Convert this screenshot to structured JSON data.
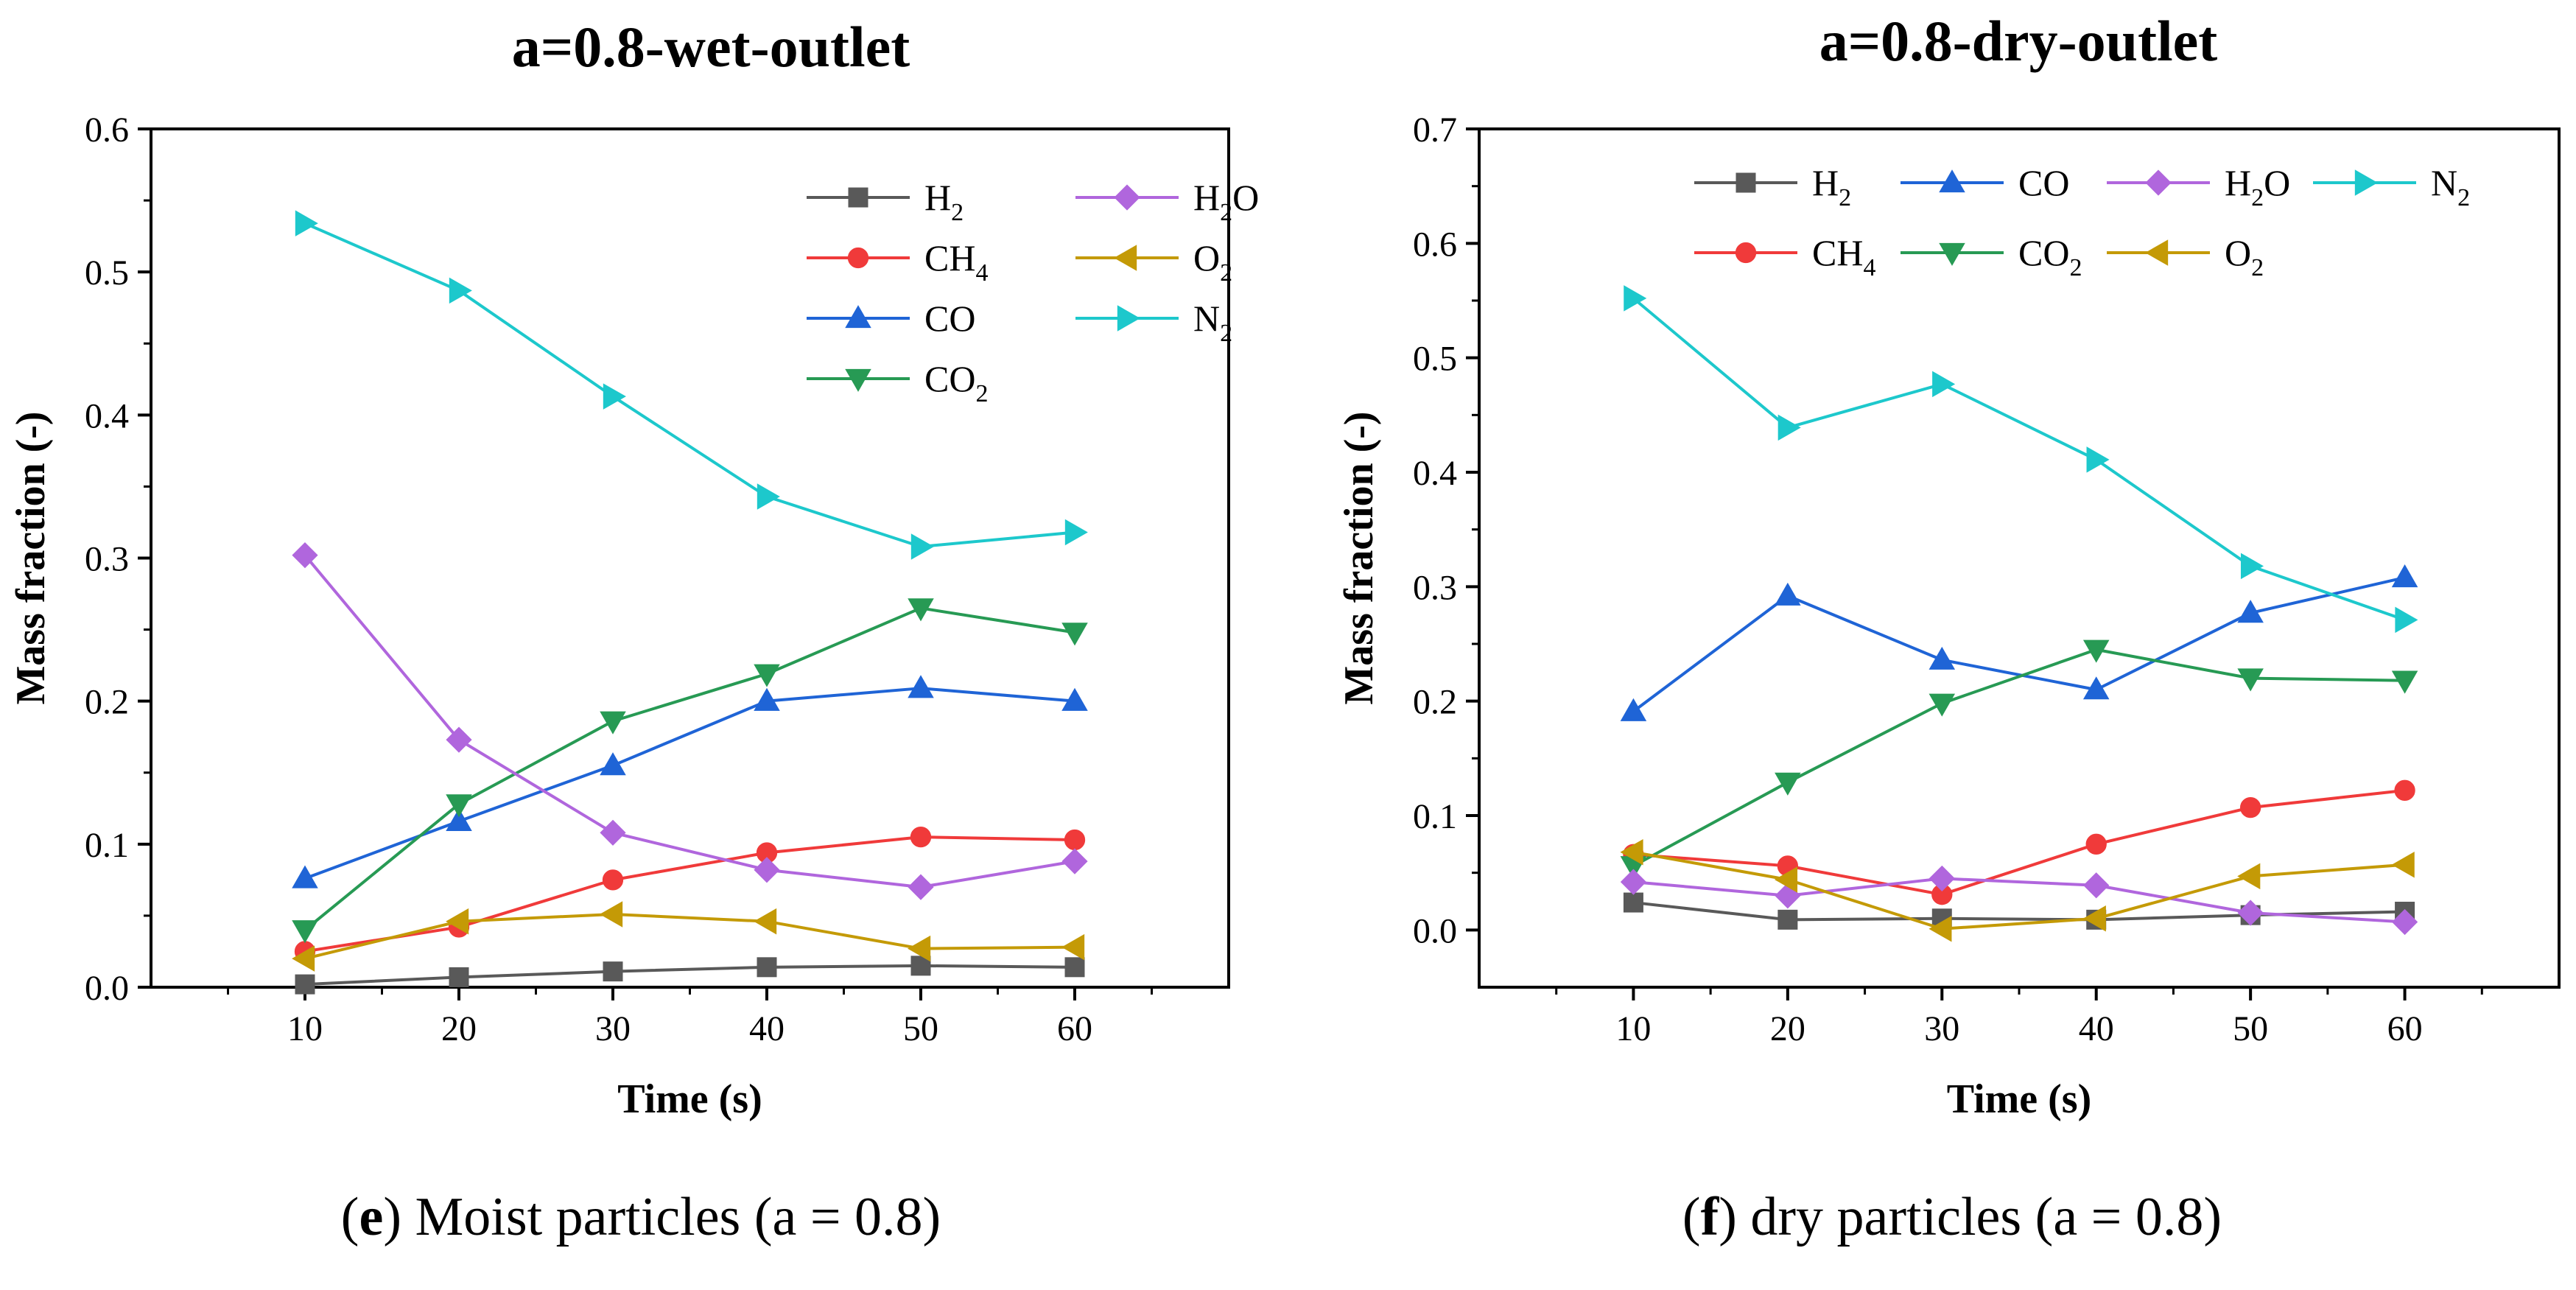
{
  "panels": [
    {
      "caption_letter": "e",
      "caption_rest": " Moist particles (a = 0.8)"
    },
    {
      "caption_letter": "f",
      "caption_rest": " dry particles (a = 0.8)"
    }
  ],
  "series_styles": {
    "H2": {
      "color": "#595959",
      "marker": "square"
    },
    "CH4": {
      "color": "#f03a3a",
      "marker": "circle"
    },
    "CO": {
      "color": "#1f64d6",
      "marker": "triangle-up"
    },
    "CO2": {
      "color": "#279a54",
      "marker": "triangle-down"
    },
    "H2O": {
      "color": "#b066dd",
      "marker": "diamond"
    },
    "O2": {
      "color": "#c49a06",
      "marker": "triangle-left"
    },
    "N2": {
      "color": "#1dc8cc",
      "marker": "triangle-right"
    }
  },
  "chart_data": [
    {
      "type": "line",
      "title": "a=0.8-wet-outlet",
      "xlabel": "Time (s)",
      "ylabel": "Mass fraction (-)",
      "x": [
        10,
        20,
        30,
        40,
        50,
        60
      ],
      "xlim": [
        0,
        70
      ],
      "ylim": [
        0,
        0.6
      ],
      "xticks": [
        10,
        20,
        30,
        40,
        50,
        60
      ],
      "yticks": [
        "0.0",
        "0.1",
        "0.2",
        "0.3",
        "0.4",
        "0.5",
        "0.6"
      ],
      "legend_order": [
        "H2",
        "H2O",
        "CH4",
        "O2",
        "CO",
        "N2",
        "CO2"
      ],
      "legend_columns": 2,
      "legend_placement": "top-right",
      "series": [
        {
          "key": "H2",
          "base": "H",
          "sub": "2",
          "values": [
            0.002,
            0.007,
            0.011,
            0.014,
            0.015,
            0.014
          ]
        },
        {
          "key": "CH4",
          "base": "CH",
          "sub": "4",
          "values": [
            0.025,
            0.042,
            0.075,
            0.094,
            0.105,
            0.103
          ]
        },
        {
          "key": "CO",
          "base": "CO",
          "sub": "",
          "values": [
            0.076,
            0.116,
            0.155,
            0.2,
            0.209,
            0.2
          ]
        },
        {
          "key": "CO2",
          "base": "CO",
          "sub": "2",
          "values": [
            0.04,
            0.128,
            0.186,
            0.219,
            0.265,
            0.248
          ]
        },
        {
          "key": "H2O",
          "base": "H",
          "sub": "2",
          "tail": "O",
          "values": [
            0.302,
            0.173,
            0.108,
            0.082,
            0.07,
            0.088
          ]
        },
        {
          "key": "O2",
          "base": "O",
          "sub": "2",
          "values": [
            0.02,
            0.046,
            0.051,
            0.046,
            0.027,
            0.028
          ]
        },
        {
          "key": "N2",
          "base": "N",
          "sub": "2",
          "values": [
            0.534,
            0.487,
            0.413,
            0.343,
            0.308,
            0.318
          ]
        }
      ]
    },
    {
      "type": "line",
      "title": "a=0.8-dry-outlet",
      "xlabel": "Time (s)",
      "ylabel": "Mass fraction (-)",
      "x": [
        10,
        20,
        30,
        40,
        50,
        60
      ],
      "xlim": [
        0,
        70
      ],
      "ylim": [
        -0.05,
        0.7
      ],
      "xticks": [
        10,
        20,
        30,
        40,
        50,
        60
      ],
      "yticks": [
        "0.0",
        "0.1",
        "0.2",
        "0.3",
        "0.4",
        "0.5",
        "0.6",
        "0.7"
      ],
      "legend_order": [
        "H2",
        "CO",
        "H2O",
        "N2",
        "CH4",
        "CO2",
        "O2"
      ],
      "legend_columns": 4,
      "legend_placement": "top",
      "series": [
        {
          "key": "H2",
          "base": "H",
          "sub": "2",
          "values": [
            0.024,
            0.009,
            0.01,
            0.009,
            0.013,
            0.016
          ]
        },
        {
          "key": "CH4",
          "base": "CH",
          "sub": "4",
          "values": [
            0.066,
            0.056,
            0.031,
            0.075,
            0.107,
            0.122
          ]
        },
        {
          "key": "CO",
          "base": "CO",
          "sub": "",
          "values": [
            0.191,
            0.292,
            0.236,
            0.21,
            0.277,
            0.308
          ]
        },
        {
          "key": "CO2",
          "base": "CO",
          "sub": "2",
          "values": [
            0.056,
            0.129,
            0.198,
            0.245,
            0.22,
            0.218
          ]
        },
        {
          "key": "H2O",
          "base": "H",
          "sub": "2",
          "tail": "O",
          "values": [
            0.042,
            0.03,
            0.045,
            0.039,
            0.015,
            0.007
          ]
        },
        {
          "key": "O2",
          "base": "O",
          "sub": "2",
          "values": [
            0.068,
            0.044,
            0.001,
            0.01,
            0.047,
            0.057
          ]
        },
        {
          "key": "N2",
          "base": "N",
          "sub": "2",
          "values": [
            0.552,
            0.439,
            0.477,
            0.411,
            0.318,
            0.271
          ]
        }
      ]
    }
  ]
}
